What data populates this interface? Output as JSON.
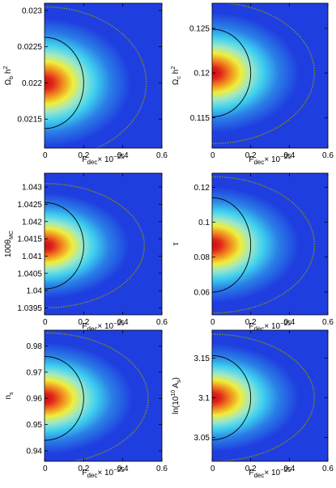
{
  "figure": {
    "colors": {
      "background": "#1f3ee0",
      "contour_1sigma": "#000000",
      "contour_2sigma": "#7f8a2a",
      "colormap": [
        "#1f3ee0",
        "#2a7fe6",
        "#3fd0f0",
        "#9fe8c6",
        "#f0ee3a",
        "#f08a1e",
        "#e0221c",
        "#c41010"
      ]
    },
    "xlabel_main": "F",
    "xlabel_sub": "dec",
    "xlabel_times": "× 10",
    "xlabel_exp": "−25"
  },
  "chart_data": [
    {
      "type": "heatmap",
      "id": "omega-b",
      "ylabel_main": "Ω",
      "ylabel_sub": "b",
      "ylabel_rest": " h",
      "ylabel_sup": "2",
      "xlim": [
        0,
        0.6
      ],
      "ylim": [
        0.0211,
        0.0231
      ],
      "x_ticks": [
        "0",
        "0.2",
        "0.4",
        "0.6"
      ],
      "x_tick_values": [
        0,
        0.2,
        0.4,
        0.6
      ],
      "y_ticks": [
        "0.0215",
        "0.022",
        "0.0225",
        "0.023"
      ],
      "y_tick_values": [
        0.0215,
        0.022,
        0.0225,
        0.023
      ],
      "peak": [
        0,
        0.022
      ],
      "contour_1sigma_halfwidth": 0.00063,
      "contour_1sigma_xmax": 0.2,
      "contour_2sigma_halfwidth": 0.00105,
      "contour_2sigma_xmax": 0.52
    },
    {
      "type": "heatmap",
      "id": "omega-c",
      "ylabel_main": "Ω",
      "ylabel_sub": "c",
      "ylabel_rest": " h",
      "ylabel_sup": "2",
      "xlim": [
        0,
        0.6
      ],
      "ylim": [
        0.1116,
        0.1278
      ],
      "x_ticks": [
        "0",
        "0.2",
        "0.4",
        "0.6"
      ],
      "x_tick_values": [
        0,
        0.2,
        0.4,
        0.6
      ],
      "y_ticks": [
        "0.115",
        "0.12",
        "0.125"
      ],
      "y_tick_values": [
        0.115,
        0.12,
        0.125
      ],
      "peak": [
        0,
        0.12
      ],
      "contour_1sigma_halfwidth": 0.0049,
      "contour_1sigma_xmax": 0.2,
      "contour_2sigma_halfwidth": 0.0079,
      "contour_2sigma_xmax": 0.53
    },
    {
      "type": "heatmap",
      "id": "theta-mc",
      "ylabel_main": "100θ",
      "ylabel_sub": "MC",
      "ylabel_rest": "",
      "ylabel_sup": "",
      "xlim": [
        0,
        0.6
      ],
      "ylim": [
        1.0393,
        1.0434
      ],
      "x_ticks": [
        "0",
        "0.2",
        "0.4",
        "0.6"
      ],
      "x_tick_values": [
        0,
        0.2,
        0.4,
        0.6
      ],
      "y_ticks": [
        "1.0395",
        "1.04",
        "1.0405",
        "1.041",
        "1.0415",
        "1.042",
        "1.0425",
        "1.043"
      ],
      "y_tick_values": [
        1.0395,
        1.04,
        1.0405,
        1.041,
        1.0415,
        1.042,
        1.0425,
        1.043
      ],
      "peak": [
        0,
        1.0413
      ],
      "contour_1sigma_halfwidth": 0.00125,
      "contour_1sigma_xmax": 0.2,
      "contour_2sigma_halfwidth": 0.0018,
      "contour_2sigma_xmax": 0.51
    },
    {
      "type": "heatmap",
      "id": "tau",
      "ylabel_main": "τ",
      "ylabel_sub": "",
      "ylabel_rest": "",
      "ylabel_sup": "",
      "xlim": [
        0,
        0.6
      ],
      "ylim": [
        0.047,
        0.128
      ],
      "x_ticks": [
        "0",
        "0.2",
        "0.4",
        "0.6"
      ],
      "x_tick_values": [
        0,
        0.2,
        0.4,
        0.6
      ],
      "y_ticks": [
        "0.06",
        "0.08",
        "0.1",
        "0.12"
      ],
      "y_tick_values": [
        0.06,
        0.08,
        0.1,
        0.12
      ],
      "peak": [
        0,
        0.087
      ],
      "contour_1sigma_halfwidth": 0.027,
      "contour_1sigma_xmax": 0.2,
      "contour_2sigma_halfwidth": 0.039,
      "contour_2sigma_xmax": 0.53
    },
    {
      "type": "heatmap",
      "id": "ns",
      "ylabel_main": "n",
      "ylabel_sub": "s",
      "ylabel_rest": "",
      "ylabel_sup": "",
      "xlim": [
        0,
        0.6
      ],
      "ylim": [
        0.936,
        0.986
      ],
      "x_ticks": [
        "0",
        "0.2",
        "0.4",
        "0.6"
      ],
      "x_tick_values": [
        0,
        0.2,
        0.4,
        0.6
      ],
      "y_ticks": [
        "0.94",
        "0.95",
        "0.96",
        "0.97",
        "0.98"
      ],
      "y_tick_values": [
        0.94,
        0.95,
        0.96,
        0.97,
        0.98
      ],
      "peak": [
        0,
        0.96
      ],
      "contour_1sigma_halfwidth": 0.016,
      "contour_1sigma_xmax": 0.2,
      "contour_2sigma_halfwidth": 0.025,
      "contour_2sigma_xmax": 0.53
    },
    {
      "type": "heatmap",
      "id": "ln-as",
      "ylabel_main": "ln(10",
      "ylabel_sup_mid": "10",
      "ylabel_after": " A",
      "ylabel_sub": "s",
      "ylabel_close": ")",
      "ylabel_rest": "",
      "ylabel_sup": "",
      "xlim": [
        0,
        0.6
      ],
      "ylim": [
        3.02,
        3.185
      ],
      "x_ticks": [
        "0",
        "0.2",
        "0.4",
        "0.6"
      ],
      "x_tick_values": [
        0,
        0.2,
        0.4,
        0.6
      ],
      "y_ticks": [
        "3.05",
        "3.1",
        "3.15"
      ],
      "y_tick_values": [
        3.05,
        3.1,
        3.15
      ],
      "peak": [
        0,
        3.1
      ],
      "contour_1sigma_halfwidth": 0.053,
      "contour_1sigma_xmax": 0.2,
      "contour_2sigma_halfwidth": 0.08,
      "contour_2sigma_xmax": 0.53
    }
  ]
}
